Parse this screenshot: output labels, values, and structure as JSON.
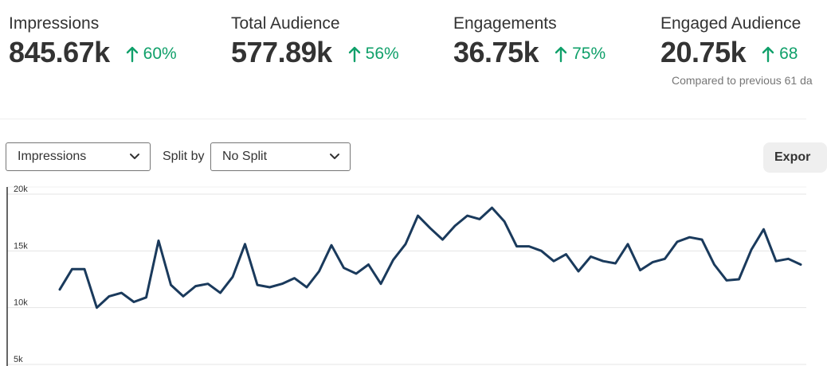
{
  "metrics": [
    {
      "label": "Impressions",
      "value": "845.67k",
      "change": "60%"
    },
    {
      "label": "Total Audience",
      "value": "577.89k",
      "change": "56%"
    },
    {
      "label": "Engagements",
      "value": "36.75k",
      "change": "75%"
    },
    {
      "label": "Engaged Audience",
      "value": "20.75k",
      "change": "68"
    }
  ],
  "compare_note": "Compared to previous 61 da",
  "controls": {
    "metric_select": "Impressions",
    "split_label": "Split by",
    "split_select": "No Split",
    "export_label": "Expor"
  },
  "colors": {
    "positive": "#10a06a",
    "line": "#1a3a5c",
    "grid": "#e5e5e5"
  },
  "chart_data": {
    "type": "line",
    "y_ticks": [
      "20k",
      "15k",
      "10k",
      "5k"
    ],
    "ylim": [
      5000,
      20000
    ],
    "grid": true,
    "series": [
      {
        "values": [
          11600,
          13400,
          13400,
          10000,
          11000,
          11300,
          10500,
          10900,
          15900,
          12000,
          11000,
          11900,
          12100,
          11300,
          12700,
          15600,
          12000,
          11800,
          12100,
          12600,
          11800,
          13200,
          15500,
          13500,
          13000,
          13800,
          12100,
          14200,
          15600,
          18100,
          17000,
          16000,
          17200,
          18100,
          17800,
          18800,
          17600,
          15400,
          15400,
          15000,
          14100,
          14700,
          13200,
          14500,
          14100,
          13900,
          15600,
          13300,
          14000,
          14300,
          15800,
          16200,
          16000,
          13800,
          12400,
          12500,
          15100,
          16900,
          14100,
          14300,
          13800
        ]
      }
    ]
  }
}
